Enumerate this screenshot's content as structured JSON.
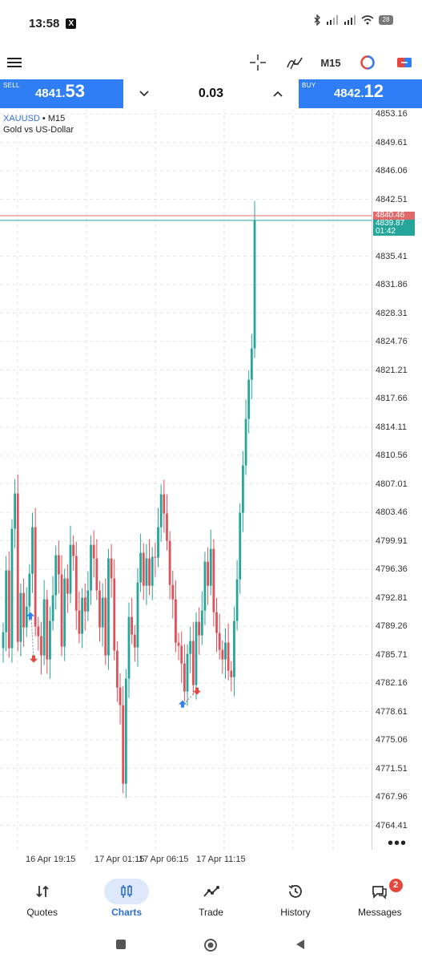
{
  "status_bar": {
    "time": "13:58",
    "x_badge": "X",
    "battery": "28"
  },
  "toolbar": {
    "menu_icon": "hamburger-menu-icon",
    "crosshair_icon": "crosshair-icon",
    "indicators_icon": "indicator-f-icon",
    "timeframe": "M15",
    "objects_icon": "ring-icon",
    "order_icon": "one-click-trading-icon"
  },
  "trade": {
    "sell_label": "SELL",
    "sell_price_small": "4841.",
    "sell_price_big": "53",
    "lot": "0.03",
    "buy_label": "BUY",
    "buy_price_small": "4842.",
    "buy_price_big": "12",
    "colors": {
      "trade_blue": "#2f7ef5"
    }
  },
  "chart_data": {
    "type": "candlestick",
    "symbol": "XAUUSD",
    "separator": "•",
    "timeframe": "M15",
    "description": "Gold vs US-Dollar",
    "y_ticks": [
      "4853.16",
      "4849.61",
      "4846.06",
      "4842.51",
      "4835.41",
      "4831.86",
      "4828.31",
      "4824.76",
      "4821.21",
      "4817.66",
      "4814.11",
      "4810.56",
      "4807.01",
      "4803.46",
      "4799.91",
      "4796.36",
      "4792.81",
      "4789.26",
      "4785.71",
      "4782.16",
      "4778.61",
      "4775.06",
      "4771.51",
      "4767.96",
      "4764.41"
    ],
    "ask_price": "4840.46",
    "bid_price": "4839.87",
    "countdown": "01:42",
    "x_ticks": [
      "16 Apr 19:15",
      "17 Apr 01:15",
      "17 Apr 06:15",
      "17 Apr 11:15"
    ],
    "ylim": [
      4762,
      4855
    ],
    "candles_close": [
      4788.5,
      4796.2,
      4786.5,
      4801.4,
      4805.8,
      4787.3,
      4793.4,
      4789.1,
      4791.7,
      4795.8,
      4801.6,
      4789.2,
      4788.0,
      4785.6,
      4792.6,
      4785.1,
      4789.9,
      4793.1,
      4798.1,
      4795.7,
      4786.7,
      4795.2,
      4793.3,
      4799.4,
      4798.0,
      4791.2,
      4788.3,
      4792.8,
      4791.1,
      4793.7,
      4799.4,
      4797.7,
      4793.7,
      4789.1,
      4792.8,
      4785.6,
      4797.7,
      4795.2,
      4786.2,
      4781.6,
      4779.4,
      4769.6,
      4782.7,
      4790.4,
      4788.2,
      4786.6,
      4794.7,
      4798.4,
      4794.3,
      4797.7,
      4794.3,
      4797.9,
      4797.8,
      4801.6,
      4805.7,
      4803.3,
      4799.9,
      4794.4,
      4792.6,
      4787.2,
      4786.8,
      4784.6,
      4781.1,
      4785.8,
      4787.4,
      4781.9,
      4789.8,
      4788.1,
      4791.2,
      4797.3,
      4794.3,
      4798.9,
      4791.0,
      4788.4,
      4786.3,
      4785.1,
      4787.2,
      4783.7,
      4782.9,
      4789.9,
      4795.1,
      4803.4,
      4809.3,
      4815.1,
      4820.0,
      4823.9,
      4839.9
    ],
    "trade_markers": [
      {
        "type": "buy",
        "label": "buy-arrow"
      },
      {
        "type": "sell",
        "label": "sell-arrow"
      },
      {
        "type": "buy",
        "label": "buy-arrow"
      },
      {
        "type": "sell",
        "label": "sell-arrow"
      }
    ],
    "grid": true,
    "colors": {
      "up": "#26a69a",
      "down": "#e0525a",
      "ask_line": "#e06a6a",
      "bid_line": "#26a69a"
    }
  },
  "bottom_nav": {
    "items": [
      {
        "label": "Quotes",
        "icon": "quotes-icon"
      },
      {
        "label": "Charts",
        "icon": "charts-icon"
      },
      {
        "label": "Trade",
        "icon": "trade-icon"
      },
      {
        "label": "History",
        "icon": "history-icon"
      },
      {
        "label": "Messages",
        "icon": "messages-icon"
      }
    ],
    "messages_badge": "2",
    "active": "Charts"
  },
  "system_nav": {
    "recents_icon": "square-icon",
    "home_icon": "circle-icon",
    "back_icon": "triangle-back-icon"
  }
}
